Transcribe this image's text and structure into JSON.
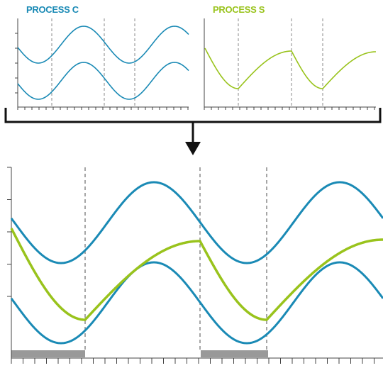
{
  "labels": {
    "process_c": "PROCESS C",
    "process_s": "PROCESS S"
  },
  "colors": {
    "process_c": "#1a8ab5",
    "process_s": "#99c31c",
    "axis": "#444444",
    "dashed_marker": "#888888",
    "active_bar": "#999999",
    "arrow": "#111111"
  },
  "chart_data": [
    {
      "type": "line",
      "panel": "process-c-small",
      "series": [
        {
          "name": "PROCESS C",
          "kind": "upper_wave"
        },
        {
          "name": "PROCESS C",
          "kind": "lower_wave"
        }
      ]
    },
    {
      "type": "line",
      "panel": "process-s-small",
      "series": [
        {
          "name": "PROCESS S",
          "kind": "sawtooth_decay"
        }
      ]
    },
    {
      "type": "line",
      "panel": "combined-large",
      "series": [
        {
          "name": "PROCESS C",
          "kind": "upper_wave"
        },
        {
          "name": "PROCESS C",
          "kind": "lower_wave"
        },
        {
          "name": "PROCESS S",
          "kind": "sawtooth_decay"
        }
      ],
      "active_periods": 2
    }
  ]
}
